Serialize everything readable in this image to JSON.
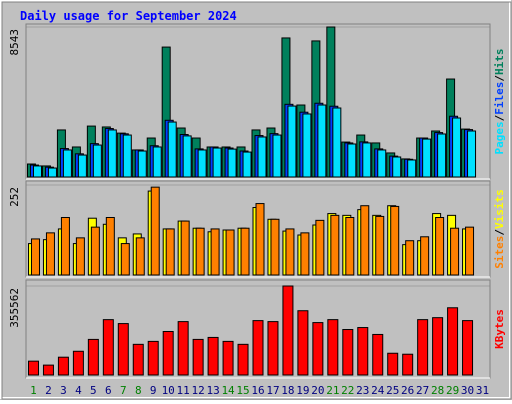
{
  "title": "Daily usage for September 2024",
  "legend_separator": "/",
  "x_axis": {
    "categories": [
      "1",
      "2",
      "3",
      "4",
      "5",
      "6",
      "7",
      "8",
      "9",
      "10",
      "11",
      "12",
      "13",
      "14",
      "15",
      "16",
      "17",
      "18",
      "19",
      "20",
      "21",
      "22",
      "23",
      "24",
      "25",
      "26",
      "27",
      "28",
      "29",
      "30",
      "31"
    ],
    "colors": [
      "#008000",
      "#000080",
      "#000080",
      "#000080",
      "#000080",
      "#000080",
      "#008000",
      "#008000",
      "#000080",
      "#000080",
      "#000080",
      "#000080",
      "#000080",
      "#008000",
      "#008000",
      "#000080",
      "#000080",
      "#000080",
      "#000080",
      "#000080",
      "#008000",
      "#008000",
      "#000080",
      "#000080",
      "#000080",
      "#000080",
      "#000080",
      "#008000",
      "#008000",
      "#000080",
      "#000080"
    ]
  },
  "chart_data": [
    {
      "type": "bar",
      "ylim": [
        0,
        8543
      ],
      "yticks": [
        8543
      ],
      "series": [
        {
          "name": "Hits",
          "color": "#00805c",
          "values": [
            740,
            630,
            2680,
            1710,
            2900,
            2850,
            2500,
            1540,
            2220,
            7400,
            2790,
            2220,
            1710,
            1710,
            1710,
            2680,
            2790,
            7920,
            4100,
            7750,
            8543,
            1990,
            2390,
            1940,
            1370,
            1030,
            2220,
            2620,
            5580,
            2730,
            null
          ]
        },
        {
          "name": "Files",
          "color": "#0040ff",
          "values": [
            680,
            560,
            1620,
            1320,
            1900,
            2760,
            2460,
            1540,
            1780,
            3230,
            2420,
            1600,
            1710,
            1650,
            1480,
            2360,
            2470,
            4140,
            3690,
            4200,
            4030,
            1940,
            2000,
            1600,
            1190,
            1010,
            2220,
            2530,
            3460,
            2700,
            null
          ]
        },
        {
          "name": "Pages",
          "color": "#00e0ff",
          "values": [
            630,
            510,
            1540,
            1250,
            1820,
            2680,
            2390,
            1480,
            1710,
            3130,
            2340,
            1540,
            1650,
            1590,
            1420,
            2280,
            2390,
            4040,
            3590,
            4100,
            3930,
            1880,
            1940,
            1540,
            1140,
            970,
            2160,
            2450,
            3360,
            2620,
            null
          ]
        }
      ]
    },
    {
      "type": "bar",
      "ylim": [
        0,
        252
      ],
      "yticks": [
        252
      ],
      "series": [
        {
          "name": "Visits",
          "color": "#ffff00",
          "values": [
            88,
            99,
            129,
            88,
            159,
            142,
            104,
            115,
            235,
            129,
            151,
            131,
            121,
            126,
            131,
            189,
            156,
            123,
            112,
            140,
            172,
            167,
            183,
            167,
            194,
            85,
            96,
            172,
            167,
            129,
            null
          ]
        },
        {
          "name": "Sites",
          "color": "#ff8000",
          "values": [
            101,
            118,
            161,
            104,
            134,
            161,
            88,
            104,
            246,
            129,
            151,
            131,
            129,
            126,
            131,
            200,
            156,
            129,
            118,
            153,
            167,
            161,
            194,
            164,
            192,
            96,
            107,
            161,
            131,
            134,
            null
          ]
        }
      ]
    },
    {
      "type": "bar",
      "ylim": [
        0,
        355562
      ],
      "yticks": [
        355562
      ],
      "series": [
        {
          "name": "KBytes",
          "color": "#ff0000",
          "values": [
            55300,
            39500,
            71100,
            94800,
            142200,
            221200,
            205400,
            122500,
            134300,
            173800,
            213300,
            142200,
            150100,
            134300,
            122500,
            217300,
            213300,
            355562,
            256800,
            209400,
            221200,
            181700,
            189600,
            162000,
            86900,
            83000,
            221200,
            229100,
            268600,
            217300,
            null
          ]
        }
      ]
    }
  ]
}
